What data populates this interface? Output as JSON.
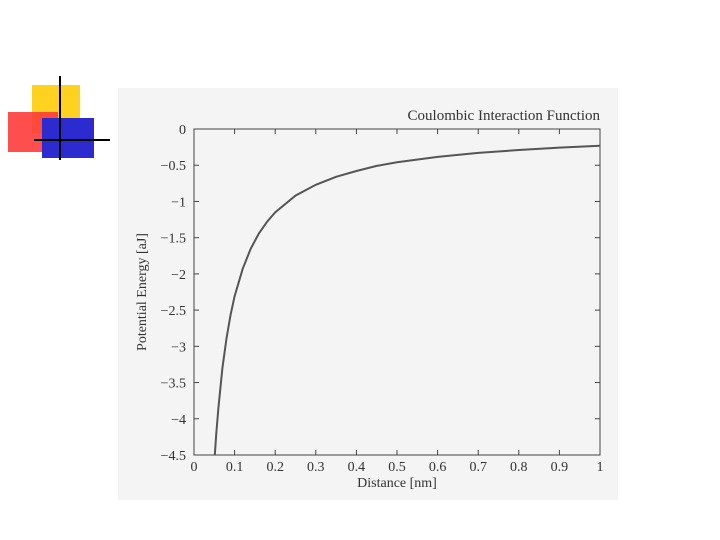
{
  "slide": {
    "accent_colors": {
      "yellow": "#ffd21f",
      "red": "#ff3b3b",
      "blue": "#2b2bcf"
    }
  },
  "chart_data": {
    "type": "line",
    "title": "Coulombic Interaction Function",
    "xlabel": "Distance [nm]",
    "ylabel": "Potential Energy [aJ]",
    "xlim": [
      0,
      1
    ],
    "ylim": [
      -4.5,
      0
    ],
    "xticks": [
      0,
      0.1,
      0.2,
      0.3,
      0.4,
      0.5,
      0.6,
      0.7,
      0.8,
      0.9,
      1
    ],
    "xtick_labels": [
      "0",
      "0.1",
      "0.2",
      "0.3",
      "0.4",
      "0.5",
      "0.6",
      "0.7",
      "0.8",
      "0.9",
      "1"
    ],
    "yticks": [
      0,
      -0.5,
      -1,
      -1.5,
      -2,
      -2.5,
      -3,
      -3.5,
      -4,
      -4.5
    ],
    "ytick_labels": [
      "0",
      "−0.5",
      "−1",
      "−1.5",
      "−2",
      "−2.5",
      "−3",
      "−3.5",
      "−4",
      "−4.5"
    ],
    "grid": false,
    "series": [
      {
        "x": [
          0.0513,
          0.055,
          0.06,
          0.07,
          0.08,
          0.09,
          0.1,
          0.12,
          0.14,
          0.16,
          0.18,
          0.2,
          0.25,
          0.3,
          0.35,
          0.4,
          0.45,
          0.5,
          0.6,
          0.7,
          0.8,
          0.9,
          1.0
        ],
        "y": [
          -4.5,
          -4.2,
          -3.85,
          -3.3,
          -2.89,
          -2.57,
          -2.31,
          -1.93,
          -1.65,
          -1.44,
          -1.28,
          -1.15,
          -0.92,
          -0.77,
          -0.66,
          -0.58,
          -0.51,
          -0.46,
          -0.385,
          -0.33,
          -0.29,
          -0.257,
          -0.231
        ]
      }
    ]
  }
}
